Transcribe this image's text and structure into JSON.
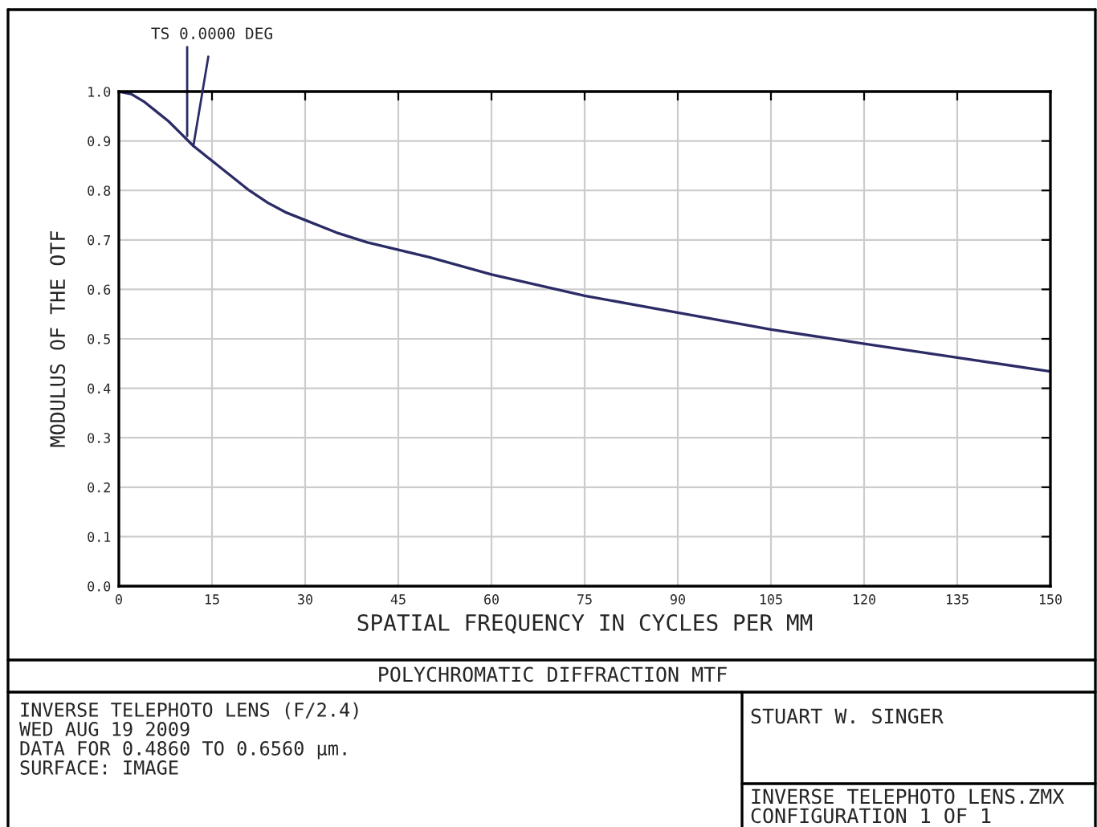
{
  "chart_data": {
    "type": "line",
    "title": "POLYCHROMATIC DIFFRACTION MTF",
    "xlabel": "SPATIAL FREQUENCY IN CYCLES PER MM",
    "ylabel": "MODULUS OF THE OTF",
    "x": [
      0,
      2,
      4,
      6,
      8,
      10,
      12,
      15,
      18,
      21,
      24,
      27,
      30,
      35,
      40,
      45,
      50,
      60,
      75,
      90,
      105,
      120,
      135,
      150
    ],
    "series": [
      {
        "color": "#2b2b66",
        "values": [
          1.0,
          0.995,
          0.98,
          0.96,
          0.94,
          0.915,
          0.89,
          0.86,
          0.83,
          0.8,
          0.775,
          0.755,
          0.74,
          0.715,
          0.695,
          0.68,
          0.665,
          0.63,
          0.587,
          0.553,
          0.519,
          0.49,
          0.462,
          0.434
        ]
      }
    ],
    "xlim": [
      0,
      150
    ],
    "xticks": [
      0,
      15,
      30,
      45,
      60,
      75,
      90,
      105,
      120,
      135,
      150
    ],
    "ylim": [
      0,
      1.0
    ],
    "yticks": [
      {
        "value": 0,
        "label": "0.0"
      },
      {
        "value": 0.1,
        "label": "0.1"
      },
      {
        "value": 0.2,
        "label": "0.2"
      },
      {
        "value": 0.3,
        "label": "0.3"
      },
      {
        "value": 0.4,
        "label": "0.4"
      },
      {
        "value": 0.5,
        "label": "0.5"
      },
      {
        "value": 0.6,
        "label": "0.6"
      },
      {
        "value": 0.7,
        "label": "0.7"
      },
      {
        "value": 0.8,
        "label": "0.8"
      },
      {
        "value": 0.9,
        "label": "0.9"
      },
      {
        "value": 1.0,
        "label": "1.0"
      }
    ],
    "grid": true,
    "marker": "none",
    "line_style": "solid",
    "annotations": [
      {
        "text": "TS 0.0000 DEG",
        "x": 12,
        "y": 0.89
      },
      "INVERSE TELEPHOTO LENS (F/2.4)",
      "WED AUG 19 2009",
      "DATA FOR 0.4860 TO 0.6560 µm.",
      "SURFACE: IMAGE",
      "STUART W. SINGER",
      "INVERSE TELEPHOTO LENS.ZMX",
      "CONFIGURATION 1 OF 1"
    ]
  }
}
